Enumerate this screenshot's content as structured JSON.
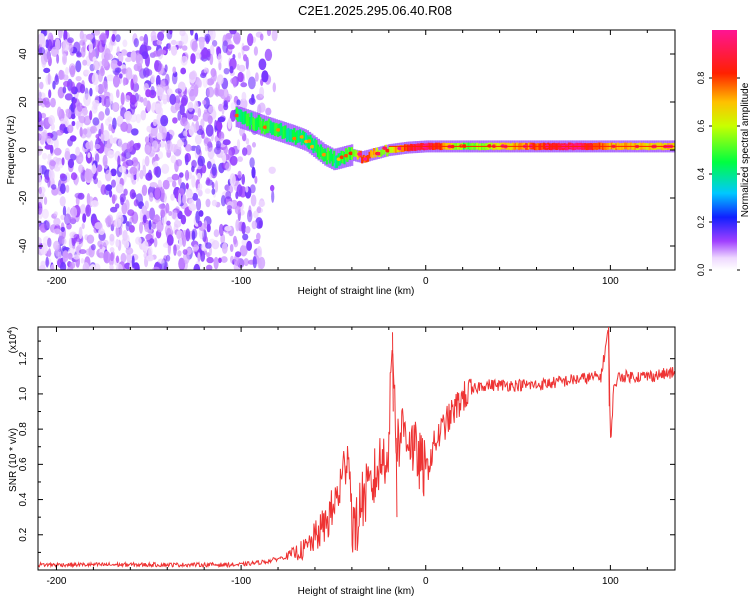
{
  "title": "C2E1.2025.295.06.40.R08",
  "chart_data": [
    {
      "type": "heatmap",
      "name": "spectrogram",
      "xlabel": "Height of straight line (km)",
      "ylabel": "Frequency (Hz)",
      "xlim": [
        -210,
        135
      ],
      "ylim": [
        -50,
        50
      ],
      "x_ticks": [
        -200,
        -100,
        0,
        100
      ],
      "y_ticks": [
        -40,
        -20,
        0,
        20,
        40
      ],
      "colorbar": {
        "label": "Normalized spectral amplitude",
        "range": [
          0,
          1
        ],
        "ticks": [
          0.0,
          0.2,
          0.4,
          0.6,
          0.8
        ]
      },
      "ridge": {
        "x": [
          -103,
          -95,
          -88,
          -80,
          -72,
          -65,
          -60,
          -55,
          -50,
          -45,
          -40,
          -35,
          -30,
          -25,
          -20,
          -10,
          0,
          20,
          50,
          80,
          100,
          135
        ],
        "freq": [
          14,
          12,
          10,
          8,
          6,
          4,
          1,
          -2,
          -4,
          -3,
          -2,
          -3,
          -2,
          -1,
          0,
          1,
          1.5,
          1.5,
          1.5,
          1.5,
          1.5,
          1.5
        ],
        "amplitude": [
          0.42,
          0.45,
          0.48,
          0.45,
          0.42,
          0.4,
          0.45,
          0.48,
          0.42,
          0.45,
          0.5,
          0.8,
          0.75,
          0.55,
          0.6,
          0.85,
          0.95,
          0.5,
          0.72,
          0.95,
          0.7,
          0.65
        ]
      },
      "noise_region_x": [
        -210,
        -80
      ]
    },
    {
      "type": "line",
      "name": "snr",
      "xlabel": "Height of straight line (km)",
      "ylabel": "SNR (10 * v/v)",
      "multiplier": "(x10",
      "multiplier_exp": "4",
      "multiplier_close": ")",
      "xlim": [
        -210,
        135
      ],
      "ylim": [
        0,
        1.38
      ],
      "x_ticks": [
        -200,
        -100,
        0,
        100
      ],
      "y_ticks": [
        0.2,
        0.4,
        0.6,
        0.8,
        1.0,
        1.2
      ],
      "series": [
        {
          "name": "SNR",
          "color": "#ee3333",
          "x": [
            -210,
            -150,
            -100,
            -85,
            -75,
            -65,
            -55,
            -50,
            -45,
            -42,
            -40,
            -38,
            -35,
            -30,
            -25,
            -20,
            -18,
            -16,
            -15,
            -12,
            -10,
            -5,
            0,
            5,
            10,
            20,
            30,
            40,
            60,
            80,
            95,
            99,
            100,
            102,
            105,
            120,
            135
          ],
          "y": [
            0.03,
            0.03,
            0.03,
            0.05,
            0.08,
            0.12,
            0.25,
            0.35,
            0.52,
            0.73,
            0.3,
            0.2,
            0.4,
            0.45,
            0.6,
            0.7,
            1.35,
            0.75,
            0.72,
            0.82,
            0.78,
            0.65,
            0.55,
            0.72,
            0.82,
            0.98,
            1.05,
            1.05,
            1.05,
            1.08,
            1.1,
            1.38,
            0.72,
            1.05,
            1.1,
            1.1,
            1.12
          ]
        }
      ]
    }
  ],
  "colors": {
    "snr_line": "#ee3333",
    "noise": "#8a30f0",
    "axis": "#000000"
  }
}
